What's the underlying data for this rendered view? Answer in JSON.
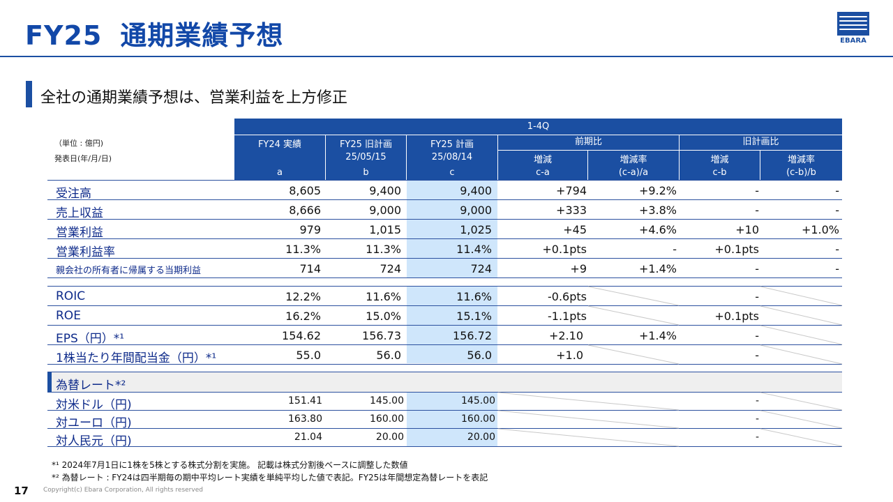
{
  "title": {
    "prefix": "FY25",
    "main": "通期業績予想"
  },
  "logo": {
    "text": "EBARA"
  },
  "subtitle": "全社の通期業績予想は、営業利益を上方修正",
  "header": {
    "period": "1-4Q",
    "unit_label": "（単位 : 億円)",
    "date_label": "発表日(年/月/日)",
    "col_fy24": "FY24 実績",
    "col_fy25_old": "FY25 旧計画",
    "col_fy25_new": "FY25 計画",
    "group_prev": "前期比",
    "group_plan": "旧計画比",
    "change": "増減",
    "rate": "増減率",
    "date_old": "25/05/15",
    "date_new": "25/08/14",
    "key_a": "a",
    "key_b": "b",
    "key_c": "c",
    "key_ca": "c-a",
    "key_car": "(c-a)/a",
    "key_cb": "c-b",
    "key_cbr": "(c-b)/b"
  },
  "rows1": [
    {
      "label": "受注高",
      "a": "8,605",
      "b": "9,400",
      "c": "9,400",
      "ca": "+794",
      "car": "+9.2%",
      "cb": "-",
      "cbr": "-"
    },
    {
      "label": "売上収益",
      "a": "8,666",
      "b": "9,000",
      "c": "9,000",
      "ca": "+333",
      "car": "+3.8%",
      "cb": "-",
      "cbr": "-"
    },
    {
      "label": "営業利益",
      "a": "979",
      "b": "1,015",
      "c": "1,025",
      "ca": "+45",
      "car": "+4.6%",
      "cb": "+10",
      "cbr": "+1.0%"
    },
    {
      "label": "営業利益率",
      "a": "11.3%",
      "b": "11.3%",
      "c": "11.4%",
      "ca": "+0.1pts",
      "car": "-",
      "cb": "+0.1pts",
      "cbr": "-"
    },
    {
      "label": "親会社の所有者に帰属する当期利益",
      "a": "714",
      "b": "724",
      "c": "724",
      "ca": "+9",
      "car": "+1.4%",
      "cb": "-",
      "cbr": "-"
    }
  ],
  "rows2": [
    {
      "label": "ROIC",
      "a": "12.2%",
      "b": "11.6%",
      "c": "11.6%",
      "ca": "-0.6pts",
      "car": "",
      "cb": "-"
    },
    {
      "label": "ROE",
      "a": "16.2%",
      "b": "15.0%",
      "c": "15.1%",
      "ca": "-1.1pts",
      "car": "",
      "cb": "+0.1pts"
    },
    {
      "label": "EPS（円）*¹",
      "a": "154.62",
      "b": "156.73",
      "c": "156.72",
      "ca": "+2.10",
      "car": "+1.4%",
      "cb": "-"
    },
    {
      "label": "1株当たり年間配当金（円）*¹",
      "a": "55.0",
      "b": "56.0",
      "c": "56.0",
      "ca": "+1.0",
      "car": "",
      "cb": "-"
    }
  ],
  "fx_section": "為替レート*²",
  "rows3": [
    {
      "label": "対米ドル（円)",
      "a": "151.41",
      "b": "145.00",
      "c": "145.00",
      "cb": "-"
    },
    {
      "label": "対ユーロ（円)",
      "a": "163.80",
      "b": "160.00",
      "c": "160.00",
      "cb": "-"
    },
    {
      "label": "対人民元（円)",
      "a": "21.04",
      "b": "20.00",
      "c": "20.00",
      "cb": "-"
    }
  ],
  "footnotes": [
    "*¹ 2024年7月1日に1株を5株とする株式分割を実施。 記載は株式分割後ベースに調整した数値",
    "*² 為替レート : FY24は四半期毎の期中平均レート実績を単純平均した値で表記。FY25は年間想定為替レートを表記"
  ],
  "page_number": "17",
  "copyright": "Copyright(c) Ebara Corporation, All rights reserved",
  "colors": {
    "brand": "#1b4fa2",
    "highlight": "#cfe6fb"
  }
}
